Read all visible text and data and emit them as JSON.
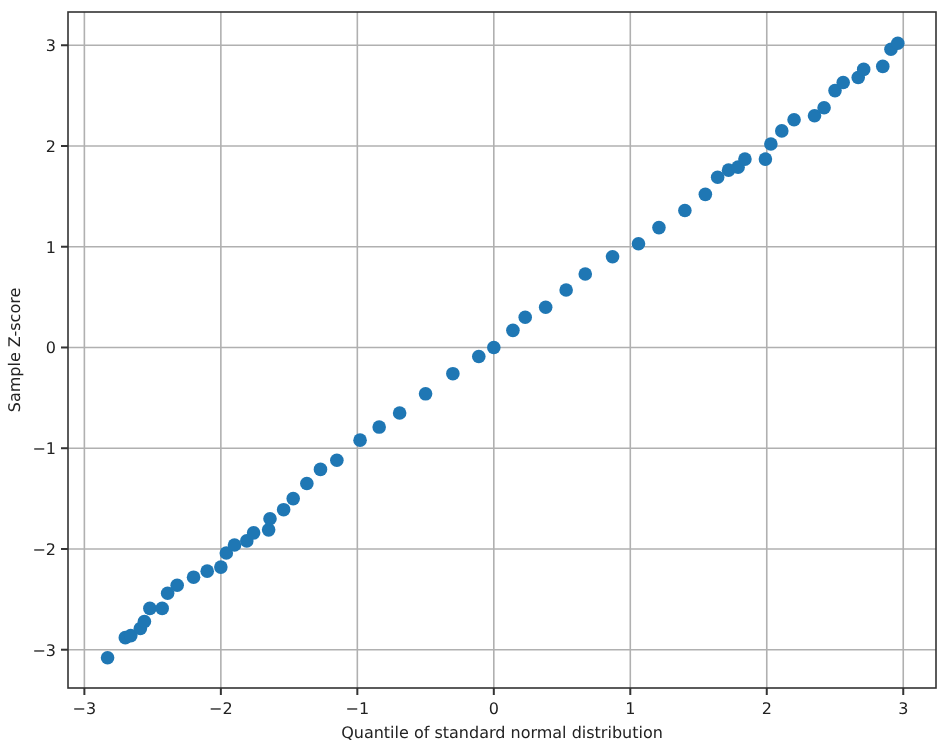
{
  "chart_data": {
    "type": "scatter",
    "xlabel": "Quantile of standard normal distribution",
    "ylabel": "Sample Z-score",
    "x": [
      -2.83,
      -2.7,
      -2.66,
      -2.59,
      -2.56,
      -2.52,
      -2.43,
      -2.39,
      -2.32,
      -2.2,
      -2.1,
      -2.0,
      -1.96,
      -1.9,
      -1.81,
      -1.76,
      -1.65,
      -1.64,
      -1.54,
      -1.47,
      -1.37,
      -1.27,
      -1.15,
      -0.98,
      -0.84,
      -0.69,
      -0.5,
      -0.3,
      -0.11,
      0,
      0.14,
      0.23,
      0.38,
      0.53,
      0.67,
      0.87,
      1.06,
      1.21,
      1.4,
      1.55,
      1.64,
      1.72,
      1.79,
      1.84,
      1.99,
      2.03,
      2.11,
      2.2,
      2.35,
      2.42,
      2.5,
      2.56,
      2.67,
      2.71,
      2.85,
      2.91,
      2.96
    ],
    "series": [
      {
        "color": "#1f77b4",
        "values": [
          -3.08,
          -2.88,
          -2.86,
          -2.79,
          -2.72,
          -2.59,
          -2.59,
          -2.44,
          -2.36,
          -2.28,
          -2.22,
          -2.18,
          -2.04,
          -1.96,
          -1.92,
          -1.84,
          -1.81,
          -1.7,
          -1.61,
          -1.5,
          -1.35,
          -1.21,
          -1.12,
          -0.92,
          -0.79,
          -0.65,
          -0.46,
          -0.26,
          -0.09,
          0,
          0.17,
          0.3,
          0.4,
          0.57,
          0.73,
          0.9,
          1.03,
          1.19,
          1.36,
          1.52,
          1.69,
          1.76,
          1.79,
          1.87,
          1.87,
          2.02,
          2.15,
          2.26,
          2.3,
          2.38,
          2.55,
          2.63,
          2.68,
          2.76,
          2.79,
          2.96,
          3.02
        ]
      }
    ],
    "xlim": [
      -3.12,
      3.24
    ],
    "ylim": [
      -3.38,
      3.33
    ],
    "xticks": [
      -3,
      -2,
      -1,
      0,
      1,
      2,
      3
    ],
    "yticks": [
      -3,
      -2,
      -1,
      0,
      1,
      2,
      3
    ],
    "grid": true,
    "marker": "circle"
  }
}
